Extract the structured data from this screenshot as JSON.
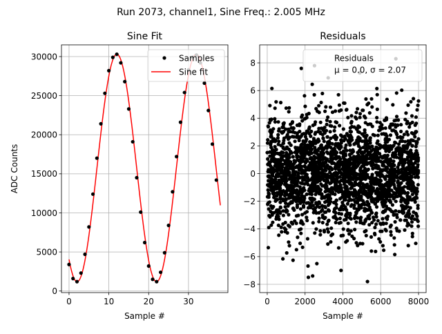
{
  "suptitle": "Run 2073, channel1, Sine Freq.: 2.005 MHz",
  "chart_data": [
    {
      "type": "scatter",
      "title": "Sine Fit",
      "xlabel": "Sample #",
      "ylabel": "ADC Counts",
      "xlim": [
        -1.9,
        39.9
      ],
      "ylim": [
        -200,
        31500
      ],
      "xticks": [
        "0",
        "10",
        "20",
        "30"
      ],
      "yticks": [
        "0",
        "5000",
        "10000",
        "15000",
        "20000",
        "25000",
        "30000"
      ],
      "grid": true,
      "legend": {
        "placement": "upper right",
        "entries": [
          "Samples",
          "Sine fit"
        ]
      },
      "series": [
        {
          "name": "Samples",
          "kind": "markers",
          "color": "#000000",
          "x": [
            0,
            1,
            2,
            3,
            4,
            5,
            6,
            7,
            8,
            9,
            10,
            11,
            12,
            13,
            14,
            15,
            16,
            17,
            18,
            19,
            20,
            21,
            22,
            23,
            24,
            25,
            26,
            27,
            28,
            29,
            30,
            31,
            32,
            33,
            34,
            35,
            36,
            37
          ],
          "y": [
            3400,
            1600,
            1200,
            2300,
            4700,
            8200,
            12400,
            17000,
            21400,
            25300,
            28200,
            29900,
            30300,
            29200,
            26800,
            23300,
            19100,
            14500,
            10100,
            6200,
            3200,
            1500,
            1200,
            2400,
            4900,
            8400,
            12700,
            17200,
            21600,
            25400,
            28300,
            29900,
            30200,
            29200,
            26600,
            23100,
            18800,
            14200
          ]
        },
        {
          "name": "Sine fit",
          "kind": "line",
          "color": "#ff0000",
          "model": {
            "offset": 15750,
            "amplitude": 14560,
            "period": 19.95,
            "phase_peak_at": 12.0
          },
          "x_range": [
            0,
            38
          ]
        }
      ]
    },
    {
      "type": "scatter",
      "title": "Residuals",
      "xlabel": "Sample #",
      "xlim": [
        -400,
        8400
      ],
      "ylim": [
        -8.6,
        9.3
      ],
      "xticks": [
        "0",
        "2000",
        "4000",
        "6000",
        "8000"
      ],
      "yticks": [
        "−8",
        "−6",
        "−4",
        "−2",
        "0",
        "2",
        "4",
        "6",
        "8"
      ],
      "grid": true,
      "legend": {
        "placement": "upper right",
        "entries": [
          "Residuals",
          "μ = 0.0, σ = 2.07"
        ]
      },
      "series": [
        {
          "name": "Residuals",
          "kind": "markers",
          "color": "#000000",
          "x_range": [
            0,
            8000
          ],
          "count": 8000,
          "mean": 0.0,
          "sigma": 2.07,
          "outliers": [
            [
              2500,
              7.8
            ],
            [
              6800,
              8.3
            ],
            [
              5300,
              -7.8
            ],
            [
              2400,
              -7.4
            ],
            [
              1800,
              7.6
            ],
            [
              3900,
              -7.0
            ]
          ]
        }
      ]
    }
  ]
}
